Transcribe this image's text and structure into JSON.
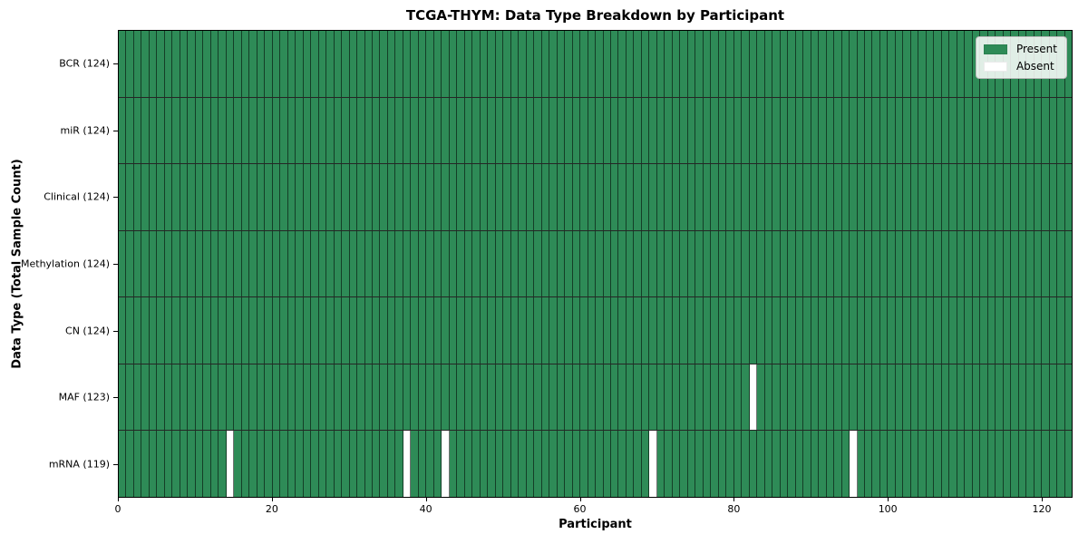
{
  "chart_data": {
    "type": "heatmap",
    "title": "TCGA-THYM: Data Type Breakdown by Participant",
    "xlabel": "Participant",
    "ylabel": "Data Type (Total Sample Count)",
    "n_participants": 124,
    "x_range": [
      0,
      124
    ],
    "x_ticks": [
      0,
      20,
      40,
      60,
      80,
      100,
      120
    ],
    "grid": "cell-edges-only",
    "rows": [
      {
        "key": "bcr",
        "label": "BCR (124)",
        "data_type": "BCR",
        "present_count": 124,
        "absent_participants": []
      },
      {
        "key": "mir",
        "label": "miR (124)",
        "data_type": "miR",
        "present_count": 124,
        "absent_participants": []
      },
      {
        "key": "clinical",
        "label": "Clinical (124)",
        "data_type": "Clinical",
        "present_count": 124,
        "absent_participants": []
      },
      {
        "key": "methylation",
        "label": "Methylation (124)",
        "data_type": "Methylation",
        "present_count": 124,
        "absent_participants": []
      },
      {
        "key": "cn",
        "label": "CN (124)",
        "data_type": "CN",
        "present_count": 124,
        "absent_participants": []
      },
      {
        "key": "maf",
        "label": "MAF (123)",
        "data_type": "MAF",
        "present_count": 123,
        "absent_participants": [
          82
        ]
      },
      {
        "key": "mrna",
        "label": "mRNA (119)",
        "data_type": "mRNA",
        "present_count": 119,
        "absent_participants": [
          14,
          37,
          42,
          69,
          95
        ]
      }
    ],
    "legend": {
      "position": "upper right",
      "entries": [
        {
          "key": "present",
          "label": "Present",
          "color": "#2e8b57"
        },
        {
          "key": "absent",
          "label": "Absent",
          "color": "#ffffff"
        }
      ]
    },
    "colors": {
      "present": "#2e8b57",
      "absent": "#ffffff",
      "cell_edge": "rgba(0,0,0,0.55)",
      "row_edge": "#000000",
      "axis": "#000000"
    }
  }
}
